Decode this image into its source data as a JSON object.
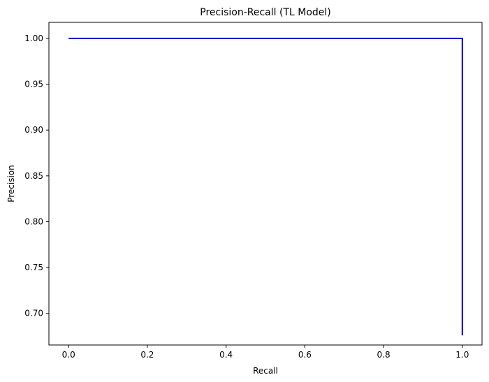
{
  "chart_data": {
    "type": "line",
    "title": "Precision-Recall (TL Model)",
    "xlabel": "Recall",
    "ylabel": "Precision",
    "xlim": [
      -0.05,
      1.05
    ],
    "ylim": [
      0.6655,
      1.0175
    ],
    "xticks": [
      0.0,
      0.2,
      0.4,
      0.6,
      0.8,
      1.0
    ],
    "xtick_labels": [
      "0.0",
      "0.2",
      "0.4",
      "0.6",
      "0.8",
      "1.0"
    ],
    "yticks": [
      0.7,
      0.75,
      0.8,
      0.85,
      0.9,
      0.95,
      1.0
    ],
    "ytick_labels": [
      "0.70",
      "0.75",
      "0.80",
      "0.85",
      "0.90",
      "0.95",
      "1.00"
    ],
    "grid": false,
    "legend": "none",
    "series": [
      {
        "color": "#0000cc",
        "x": [
          0.0,
          1.0,
          1.0
        ],
        "y": [
          1.0,
          1.0,
          0.676
        ]
      }
    ]
  }
}
